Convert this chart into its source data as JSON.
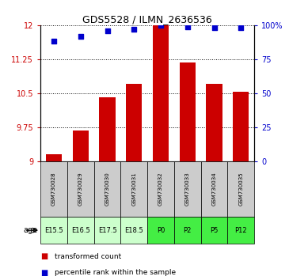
{
  "title": "GDS5528 / ILMN_2636536",
  "samples": [
    "GSM730028",
    "GSM730029",
    "GSM730030",
    "GSM730031",
    "GSM730032",
    "GSM730033",
    "GSM730034",
    "GSM730035"
  ],
  "age_labels": [
    "E15.5",
    "E16.5",
    "E17.5",
    "E18.5",
    "P0",
    "P2",
    "P5",
    "P12"
  ],
  "transformed_counts": [
    9.15,
    9.68,
    10.4,
    10.7,
    12.0,
    11.18,
    10.7,
    10.53
  ],
  "percentile_ranks": [
    88,
    92,
    96,
    97,
    100,
    99,
    98,
    98
  ],
  "ylim_left": [
    9.0,
    12.0
  ],
  "ylim_right": [
    0,
    100
  ],
  "yticks_left": [
    9.0,
    9.75,
    10.5,
    11.25,
    12.0
  ],
  "yticks_right": [
    0,
    25,
    50,
    75,
    100
  ],
  "ytick_labels_left": [
    "9",
    "9.75",
    "10.5",
    "11.25",
    "12"
  ],
  "ytick_labels_right": [
    "0",
    "25",
    "50",
    "75",
    "100%"
  ],
  "bar_color": "#cc0000",
  "dot_color": "#0000cc",
  "age_bg_embryo": "#ccffcc",
  "age_bg_postnatal": "#44ee44",
  "sample_bg": "#cccccc",
  "legend_red_label": "transformed count",
  "legend_blue_label": "percentile rank within the sample",
  "bar_width": 0.6,
  "dot_size": 25,
  "embryo_indices": [
    0,
    1,
    2,
    3
  ],
  "postnatal_indices": [
    4,
    5,
    6,
    7
  ]
}
